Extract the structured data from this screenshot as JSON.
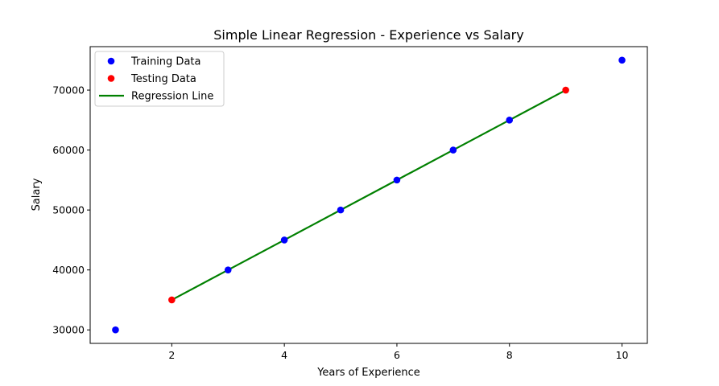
{
  "chart_data": {
    "type": "scatter",
    "title": "Simple Linear Regression - Experience vs Salary",
    "xlabel": "Years of Experience",
    "ylabel": "Salary",
    "xlim": [
      0.55,
      10.45
    ],
    "ylim": [
      27750,
      77250
    ],
    "xticks": [
      2,
      4,
      6,
      8,
      10
    ],
    "yticks": [
      30000,
      40000,
      50000,
      60000,
      70000
    ],
    "grid": false,
    "legend_position": "top-left",
    "series": [
      {
        "name": "Training Data",
        "kind": "scatter",
        "color": "#0000ff",
        "points": [
          [
            1,
            30000
          ],
          [
            3,
            40000
          ],
          [
            4,
            45000
          ],
          [
            5,
            50000
          ],
          [
            6,
            55000
          ],
          [
            7,
            60000
          ],
          [
            8,
            65000
          ],
          [
            10,
            75000
          ]
        ]
      },
      {
        "name": "Testing Data",
        "kind": "scatter",
        "color": "#ff0000",
        "points": [
          [
            2,
            35000
          ],
          [
            9,
            70000
          ]
        ]
      },
      {
        "name": "Regression Line",
        "kind": "line",
        "color": "#008000",
        "points": [
          [
            2,
            35000
          ],
          [
            3,
            40000
          ],
          [
            4,
            45000
          ],
          [
            5,
            50000
          ],
          [
            6,
            55000
          ],
          [
            7,
            60000
          ],
          [
            8,
            65000
          ],
          [
            9,
            70000
          ]
        ]
      }
    ]
  }
}
